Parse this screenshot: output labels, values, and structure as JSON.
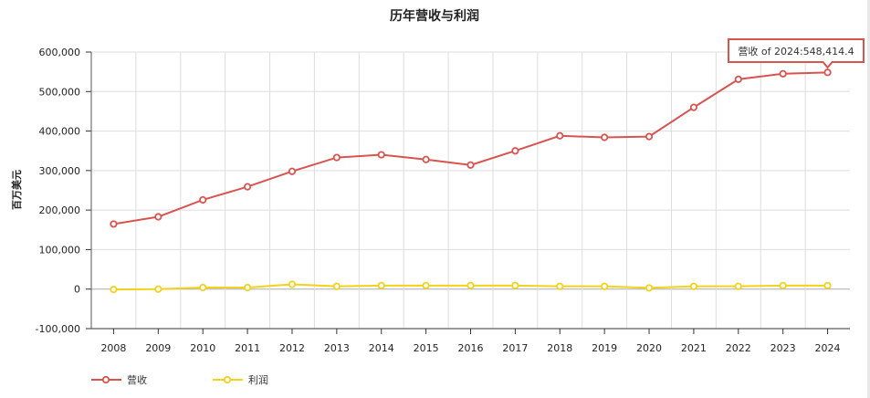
{
  "chart_data": {
    "type": "line",
    "title": "历年营收与利润",
    "xlabel": "",
    "ylabel": "百万美元",
    "categories": [
      "2008",
      "2009",
      "2010",
      "2011",
      "2012",
      "2013",
      "2014",
      "2015",
      "2016",
      "2017",
      "2018",
      "2019",
      "2020",
      "2021",
      "2022",
      "2023",
      "2024"
    ],
    "ylim": [
      -100000,
      600000
    ],
    "yticks": [
      -100000,
      0,
      100000,
      200000,
      300000,
      400000,
      500000,
      600000
    ],
    "ytick_labels": [
      "-100,000",
      "0",
      "100,000",
      "200,000",
      "300,000",
      "400,000",
      "500,000",
      "600,000"
    ],
    "grid": true,
    "legend_placement": "bottom-left",
    "series": [
      {
        "name": "营收",
        "color": "#d9534f",
        "values": [
          164700,
          183000,
          225800,
          259000,
          298000,
          333000,
          340000,
          328000,
          314000,
          350000,
          388000,
          384000,
          386000,
          460000,
          531000,
          545000,
          548414.4
        ]
      },
      {
        "name": "利润",
        "color": "#f2d21b",
        "values": [
          -1000,
          0,
          4000,
          4000,
          12000,
          7000,
          9000,
          9000,
          9000,
          9000,
          7000,
          7000,
          3000,
          7000,
          7000,
          9000,
          9000
        ]
      }
    ],
    "tooltip": {
      "text": "营收 of 2024:548,414.4",
      "series": 0,
      "index": 16
    }
  }
}
